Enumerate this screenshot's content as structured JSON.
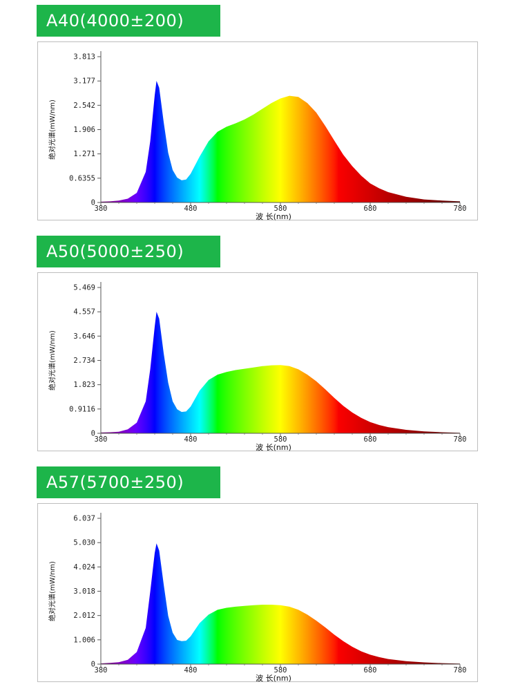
{
  "colors": {
    "tag_bg": "#1db54a",
    "tag_text": "#ffffff",
    "axis": "#555555",
    "frame": "#bdbdbd"
  },
  "chart_data": [
    {
      "type": "area",
      "title": "A40(4000±200)",
      "xlabel": "波 长(nm)",
      "ylabel": "绝对光谱(mW/nm)",
      "xlim": [
        380,
        780
      ],
      "ylim": [
        0,
        3.813
      ],
      "xticks": [
        "380",
        "480",
        "580",
        "680",
        "780"
      ],
      "yticks": [
        "0",
        "0.6355",
        "1.271",
        "1.906",
        "2.542",
        "3.177",
        "3.813"
      ],
      "fill": "wavelength-colored spectrum",
      "series": [
        {
          "x": [
            380,
            390,
            400,
            410,
            420,
            430,
            435,
            440,
            442,
            445,
            450,
            455,
            460,
            465,
            470,
            475,
            480,
            490,
            500,
            510,
            520,
            530,
            540,
            550,
            560,
            570,
            580,
            590,
            600,
            610,
            620,
            630,
            640,
            650,
            660,
            670,
            680,
            690,
            700,
            720,
            740,
            760,
            780
          ],
          "y": [
            0.02,
            0.03,
            0.05,
            0.1,
            0.25,
            0.8,
            1.6,
            2.8,
            3.18,
            3.0,
            2.1,
            1.3,
            0.85,
            0.65,
            0.58,
            0.6,
            0.75,
            1.2,
            1.6,
            1.85,
            1.98,
            2.07,
            2.17,
            2.3,
            2.45,
            2.6,
            2.72,
            2.79,
            2.76,
            2.6,
            2.35,
            2.0,
            1.62,
            1.25,
            0.95,
            0.7,
            0.5,
            0.37,
            0.27,
            0.15,
            0.08,
            0.05,
            0.03
          ]
        }
      ]
    },
    {
      "type": "area",
      "title": "A50(5000±250)",
      "xlabel": "波 长(nm)",
      "ylabel": "绝对光谱(mW/nm)",
      "xlim": [
        380,
        780
      ],
      "ylim": [
        0,
        5.469
      ],
      "xticks": [
        "380",
        "480",
        "580",
        "680",
        "780"
      ],
      "yticks": [
        "0",
        "0.9116",
        "1.823",
        "2.734",
        "3.646",
        "4.557",
        "5.469"
      ],
      "fill": "wavelength-colored spectrum",
      "series": [
        {
          "x": [
            380,
            390,
            400,
            410,
            420,
            430,
            435,
            440,
            442,
            445,
            450,
            455,
            460,
            465,
            470,
            475,
            480,
            490,
            500,
            510,
            520,
            530,
            540,
            550,
            560,
            570,
            580,
            590,
            600,
            610,
            620,
            630,
            640,
            650,
            660,
            670,
            680,
            690,
            700,
            720,
            740,
            760,
            780
          ],
          "y": [
            0.03,
            0.04,
            0.06,
            0.15,
            0.4,
            1.2,
            2.4,
            4.0,
            4.56,
            4.3,
            3.0,
            1.9,
            1.2,
            0.9,
            0.8,
            0.82,
            1.0,
            1.6,
            2.0,
            2.2,
            2.3,
            2.37,
            2.42,
            2.47,
            2.52,
            2.55,
            2.56,
            2.52,
            2.4,
            2.2,
            1.95,
            1.65,
            1.33,
            1.03,
            0.78,
            0.58,
            0.42,
            0.31,
            0.23,
            0.13,
            0.07,
            0.04,
            0.02
          ]
        }
      ]
    },
    {
      "type": "area",
      "title": "A57(5700±250)",
      "xlabel": "波 长(nm)",
      "ylabel": "绝对光谱(mW/nm)",
      "xlim": [
        380,
        780
      ],
      "ylim": [
        0,
        6.037
      ],
      "xticks": [
        "380",
        "480",
        "580",
        "680",
        "780"
      ],
      "yticks": [
        "0",
        "1.006",
        "2.012",
        "3.018",
        "4.024",
        "5.030",
        "6.037"
      ],
      "fill": "wavelength-colored spectrum",
      "series": [
        {
          "x": [
            380,
            390,
            400,
            410,
            420,
            430,
            435,
            440,
            442,
            445,
            450,
            455,
            460,
            465,
            470,
            475,
            480,
            490,
            500,
            510,
            520,
            530,
            540,
            550,
            560,
            570,
            580,
            590,
            600,
            610,
            620,
            630,
            640,
            650,
            660,
            670,
            680,
            690,
            700,
            720,
            740,
            760,
            780
          ],
          "y": [
            0.03,
            0.05,
            0.08,
            0.18,
            0.5,
            1.5,
            3.0,
            4.6,
            5.0,
            4.7,
            3.3,
            2.0,
            1.3,
            1.0,
            0.95,
            0.97,
            1.15,
            1.7,
            2.05,
            2.25,
            2.33,
            2.38,
            2.41,
            2.44,
            2.46,
            2.46,
            2.44,
            2.38,
            2.25,
            2.05,
            1.8,
            1.52,
            1.22,
            0.95,
            0.72,
            0.53,
            0.39,
            0.29,
            0.21,
            0.12,
            0.07,
            0.04,
            0.02
          ]
        }
      ]
    }
  ]
}
